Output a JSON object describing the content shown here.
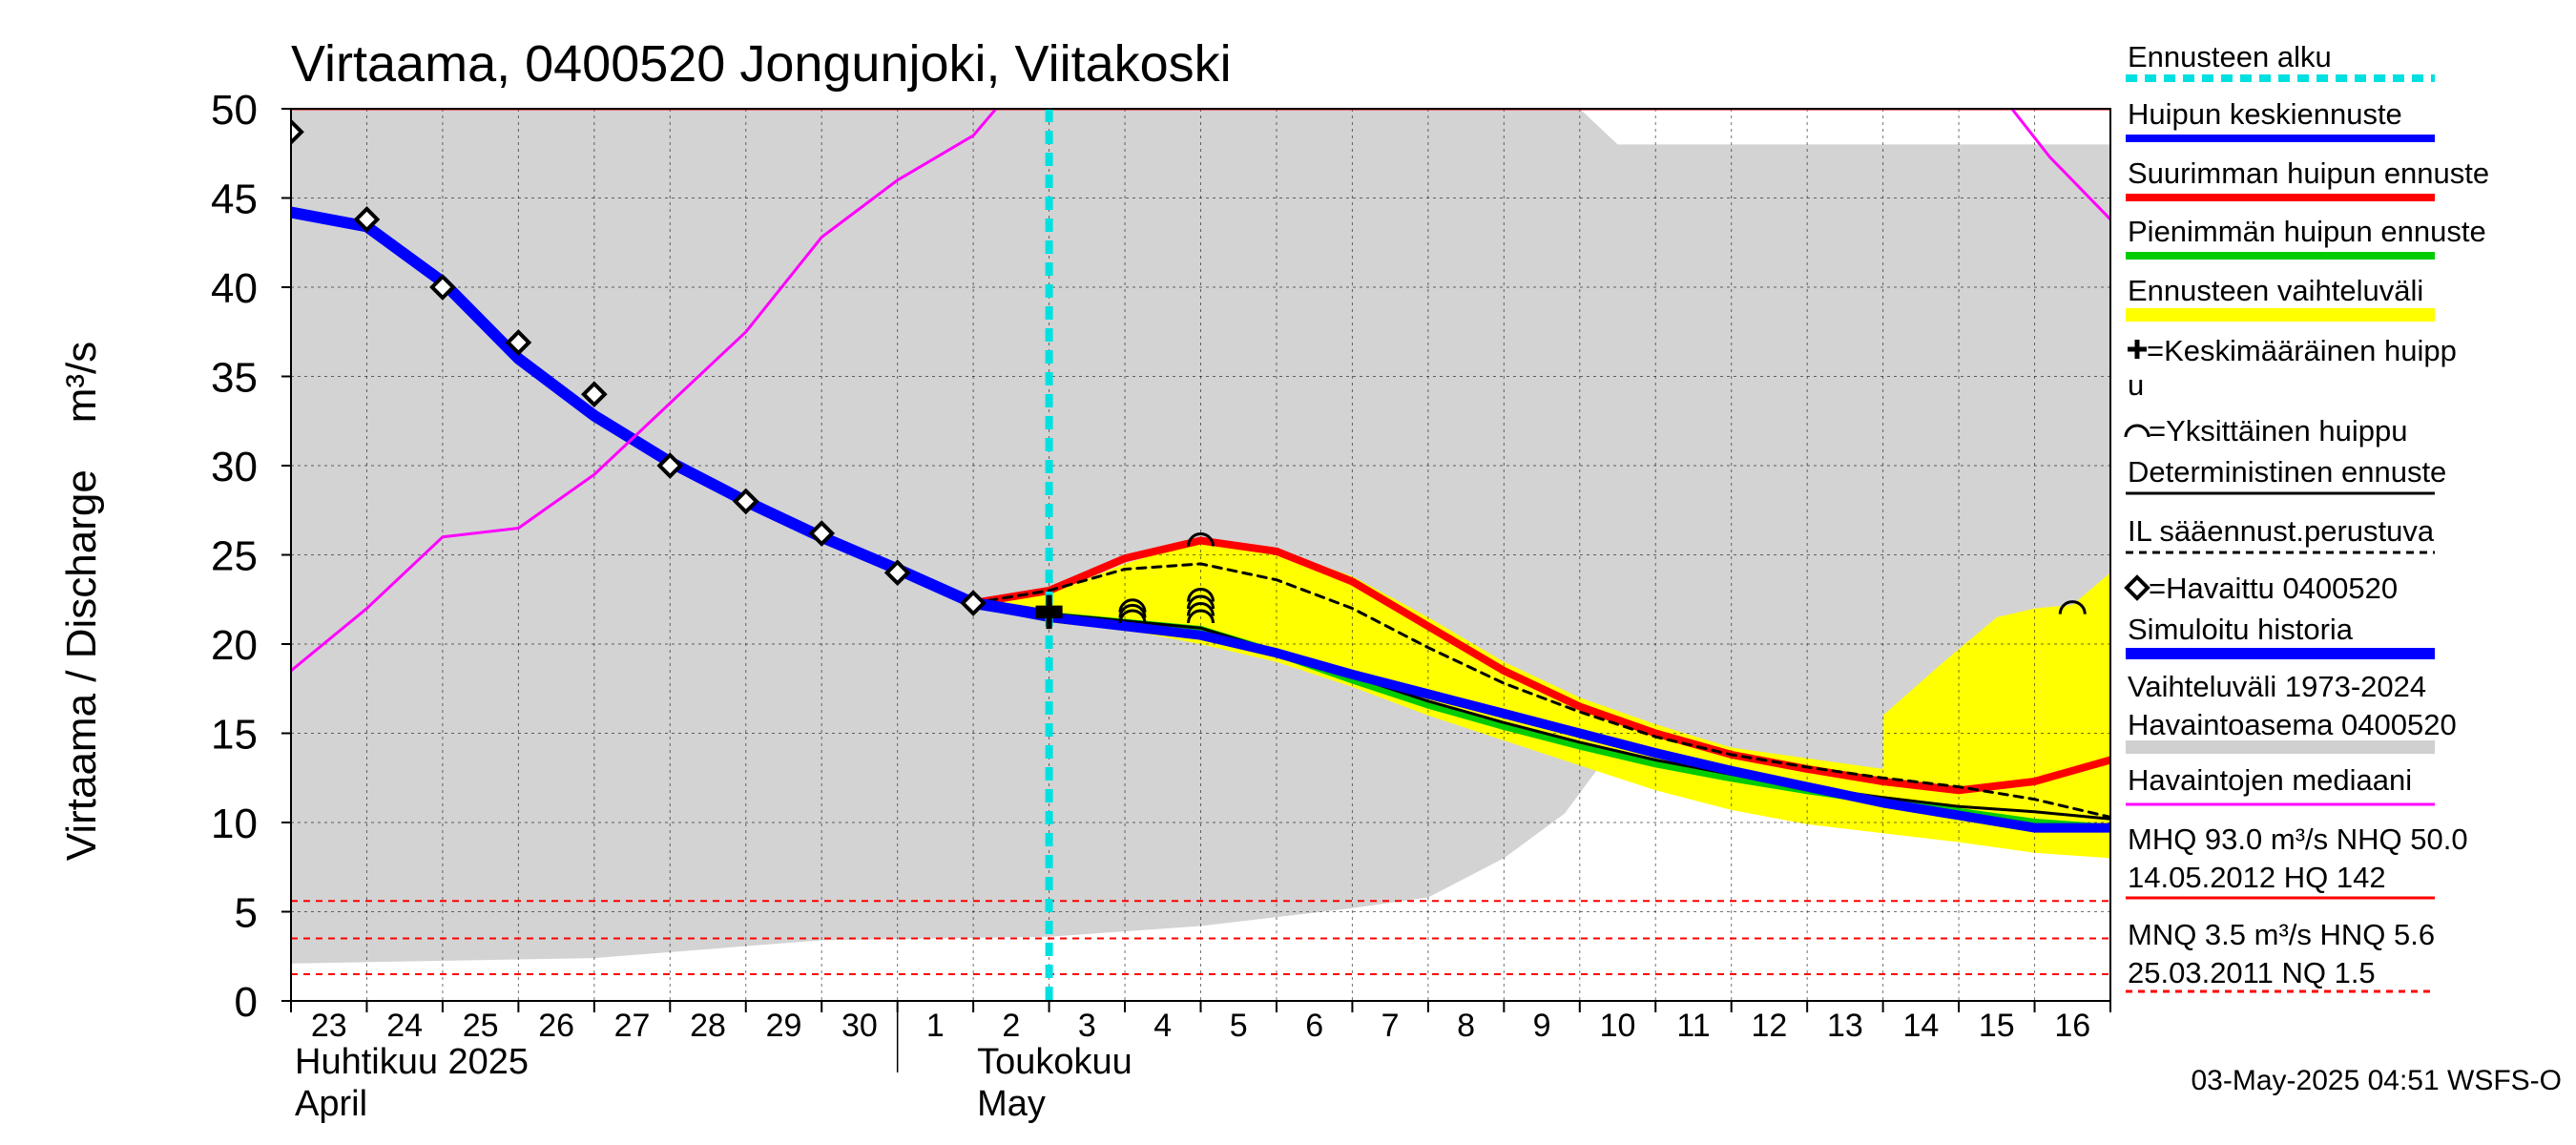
{
  "chart_data": {
    "type": "line",
    "title": "Virtaama, 0400520 Jongunjoki, Viitakoski",
    "ylabel": "Virtaama / Discharge    m³/s",
    "ylim": [
      0,
      50
    ],
    "yticks": [
      0,
      5,
      10,
      15,
      20,
      25,
      30,
      35,
      40,
      45,
      50
    ],
    "xlim": [
      0,
      24
    ],
    "x_ticks": [
      {
        "x": 0.5,
        "label": "23"
      },
      {
        "x": 1.5,
        "label": "24"
      },
      {
        "x": 2.5,
        "label": "25"
      },
      {
        "x": 3.5,
        "label": "26"
      },
      {
        "x": 4.5,
        "label": "27"
      },
      {
        "x": 5.5,
        "label": "28"
      },
      {
        "x": 6.5,
        "label": "29"
      },
      {
        "x": 7.5,
        "label": "30"
      },
      {
        "x": 8.5,
        "label": "1"
      },
      {
        "x": 9.5,
        "label": "2"
      },
      {
        "x": 10.5,
        "label": "3"
      },
      {
        "x": 11.5,
        "label": "4"
      },
      {
        "x": 12.5,
        "label": "5"
      },
      {
        "x": 13.5,
        "label": "6"
      },
      {
        "x": 14.5,
        "label": "7"
      },
      {
        "x": 15.5,
        "label": "8"
      },
      {
        "x": 16.5,
        "label": "9"
      },
      {
        "x": 17.5,
        "label": "10"
      },
      {
        "x": 18.5,
        "label": "11"
      },
      {
        "x": 19.5,
        "label": "12"
      },
      {
        "x": 20.5,
        "label": "13"
      },
      {
        "x": 21.5,
        "label": "14"
      },
      {
        "x": 22.5,
        "label": "15"
      },
      {
        "x": 23.5,
        "label": "16"
      }
    ],
    "months": [
      {
        "x": 0,
        "line1": "Huhtikuu  2025",
        "line2": "April"
      },
      {
        "x": 9,
        "line1": "Toukokuu",
        "line2": "May"
      }
    ],
    "forecast_start_x": 10,
    "hist_range_upper": [
      [
        0,
        50
      ],
      [
        17,
        50
      ],
      [
        17.5,
        48
      ],
      [
        24,
        48
      ]
    ],
    "hist_range_lower": [
      [
        0,
        2.1
      ],
      [
        4,
        2.4
      ],
      [
        7,
        3.4
      ],
      [
        10,
        3.6
      ],
      [
        12,
        4.2
      ],
      [
        14,
        5.2
      ],
      [
        15,
        5.8
      ],
      [
        16,
        8
      ],
      [
        16.8,
        10.5
      ],
      [
        17.5,
        14.5
      ],
      [
        17.6,
        16
      ],
      [
        18,
        14
      ],
      [
        24,
        11
      ]
    ],
    "ensemble_upper": [
      [
        9,
        22.2
      ],
      [
        10,
        22.8
      ],
      [
        11,
        24.5
      ],
      [
        12,
        25.8
      ],
      [
        13,
        25.3
      ],
      [
        14,
        23.8
      ],
      [
        15,
        21.5
      ],
      [
        16,
        19
      ],
      [
        17,
        17
      ],
      [
        18,
        15.5
      ],
      [
        19,
        14.2
      ],
      [
        20,
        13.6
      ],
      [
        21,
        13
      ],
      [
        22,
        12.3
      ],
      [
        23,
        11.8
      ],
      [
        23.5,
        12.5
      ],
      [
        24,
        13.2
      ]
    ],
    "ensemble_lower": [
      [
        24,
        8
      ],
      [
        23,
        8.3
      ],
      [
        22,
        8.9
      ],
      [
        21,
        9.4
      ],
      [
        20,
        9.9
      ],
      [
        19,
        10.7
      ],
      [
        18,
        11.8
      ],
      [
        17,
        13.2
      ],
      [
        16,
        14.6
      ],
      [
        15,
        16
      ],
      [
        14,
        17.6
      ],
      [
        13,
        19
      ],
      [
        12,
        20
      ],
      [
        11,
        20.8
      ],
      [
        10,
        21.2
      ],
      [
        9,
        22.2
      ]
    ],
    "ensemble_upper_tail": [
      [
        21,
        16
      ],
      [
        21.8,
        19
      ],
      [
        22.5,
        21.5
      ],
      [
        23,
        22
      ],
      [
        23.5,
        22.2
      ],
      [
        24,
        24
      ]
    ],
    "series": [
      {
        "name": "Suurimman huipun ennuste",
        "color": "#ff0000",
        "width": 8,
        "points": [
          [
            9,
            22.3
          ],
          [
            10,
            23
          ],
          [
            11,
            24.8
          ],
          [
            12,
            25.8
          ],
          [
            13,
            25.2
          ],
          [
            14,
            23.5
          ],
          [
            15,
            21
          ],
          [
            16,
            18.5
          ],
          [
            17,
            16.5
          ],
          [
            18,
            15
          ],
          [
            19,
            13.8
          ],
          [
            20,
            13
          ],
          [
            21,
            12.3
          ],
          [
            22,
            11.8
          ],
          [
            23,
            12.3
          ],
          [
            24,
            13.5
          ]
        ]
      },
      {
        "name": "Pienimmän huipun ennuste",
        "color": "#00cc00",
        "width": 8,
        "points": [
          [
            9,
            22.3
          ],
          [
            10,
            21.6
          ],
          [
            11,
            21.2
          ],
          [
            12,
            20.8
          ],
          [
            13,
            19.5
          ],
          [
            14,
            18
          ],
          [
            15,
            16.6
          ],
          [
            16,
            15.4
          ],
          [
            17,
            14.3
          ],
          [
            18,
            13.3
          ],
          [
            19,
            12.5
          ],
          [
            20,
            11.8
          ],
          [
            21,
            11.2
          ],
          [
            22,
            10.6
          ],
          [
            23,
            10
          ],
          [
            24,
            9.7
          ]
        ]
      },
      {
        "name": "Deterministinen ennuste",
        "color": "#000000",
        "width": 3,
        "points": [
          [
            9,
            22.3
          ],
          [
            10,
            21.7
          ],
          [
            11,
            21.3
          ],
          [
            12,
            20.9
          ],
          [
            13,
            19.6
          ],
          [
            14,
            18.2
          ],
          [
            15,
            16.8
          ],
          [
            16,
            15.6
          ],
          [
            17,
            14.5
          ],
          [
            18,
            13.5
          ],
          [
            19,
            12.7
          ],
          [
            20,
            12
          ],
          [
            21,
            11.4
          ],
          [
            22,
            10.9
          ],
          [
            23,
            10.6
          ],
          [
            24,
            10.2
          ]
        ]
      },
      {
        "name": "IL sääennust.perustuva",
        "color": "#000000",
        "width": 3,
        "dash": "9,7",
        "points": [
          [
            9,
            22.3
          ],
          [
            10,
            23
          ],
          [
            11,
            24.2
          ],
          [
            12,
            24.5
          ],
          [
            13,
            23.6
          ],
          [
            14,
            22
          ],
          [
            15,
            19.8
          ],
          [
            16,
            17.8
          ],
          [
            17,
            16.2
          ],
          [
            18,
            14.8
          ],
          [
            19,
            13.8
          ],
          [
            20,
            13.1
          ],
          [
            21,
            12.5
          ],
          [
            22,
            12
          ],
          [
            23,
            11.3
          ],
          [
            24,
            10.3
          ]
        ]
      },
      {
        "name": "Huipun keskiennuste",
        "color": "#0000ff",
        "width": 10,
        "points": [
          [
            9,
            22.3
          ],
          [
            10,
            21.5
          ],
          [
            11,
            21
          ],
          [
            12,
            20.5
          ],
          [
            13,
            19.5
          ],
          [
            14,
            18.3
          ],
          [
            15,
            17.2
          ],
          [
            16,
            16.1
          ],
          [
            17,
            15
          ],
          [
            18,
            13.9
          ],
          [
            19,
            12.9
          ],
          [
            20,
            12
          ],
          [
            21,
            11.1
          ],
          [
            22,
            10.4
          ],
          [
            23,
            9.7
          ],
          [
            24,
            9.7
          ]
        ]
      },
      {
        "name": "Simuloitu historia",
        "color": "#0000ff",
        "width": 12,
        "points": [
          [
            0,
            44.2
          ],
          [
            1,
            43.4
          ],
          [
            2,
            40.3
          ],
          [
            3,
            36
          ],
          [
            4,
            32.8
          ],
          [
            5,
            30.2
          ],
          [
            6,
            28
          ],
          [
            7,
            26
          ],
          [
            8,
            24.2
          ],
          [
            9,
            22.3
          ],
          [
            10,
            21.6
          ]
        ]
      },
      {
        "name": "Havaintojen mediaani",
        "color": "#ff00ff",
        "width": 3,
        "points": [
          [
            0,
            18.5
          ],
          [
            1,
            22
          ],
          [
            2,
            26
          ],
          [
            3,
            26.5
          ],
          [
            4,
            29.5
          ],
          [
            5,
            33.5
          ],
          [
            6,
            37.5
          ],
          [
            7,
            42.8
          ],
          [
            8,
            46
          ],
          [
            9,
            48.5
          ],
          [
            9.3,
            50
          ]
        ]
      },
      {
        "name": "Havaintojen mediaani (loppu)",
        "color": "#ff00ff",
        "width": 3,
        "points": [
          [
            22.7,
            50
          ],
          [
            23.2,
            47.3
          ],
          [
            24,
            43.8
          ]
        ]
      }
    ],
    "observed": [
      [
        0,
        48.7
      ],
      [
        1,
        43.8
      ],
      [
        2,
        40
      ],
      [
        3,
        36.9
      ],
      [
        4,
        34
      ],
      [
        5,
        30
      ],
      [
        6,
        28
      ],
      [
        7,
        26.2
      ],
      [
        8,
        24
      ],
      [
        9,
        22.3
      ]
    ],
    "mean_peak_marks": [
      [
        10,
        22
      ],
      [
        10,
        21.8
      ],
      [
        10,
        21.6
      ]
    ],
    "single_peak_marks": [
      [
        11.1,
        22.1
      ],
      [
        11.1,
        21.8
      ],
      [
        11.1,
        21.5
      ],
      [
        12,
        25.8
      ],
      [
        12,
        22.7
      ],
      [
        12,
        22.3
      ],
      [
        12,
        21.9
      ],
      [
        12,
        21.5
      ],
      [
        23.5,
        22
      ]
    ],
    "hlines": [
      {
        "y": 50,
        "color": "#ff0000",
        "dash": null,
        "width": 3
      },
      {
        "y": 5.6,
        "color": "#ff0000",
        "dash": "7,6",
        "width": 2
      },
      {
        "y": 3.5,
        "color": "#ff0000",
        "dash": "7,6",
        "width": 2
      },
      {
        "y": 1.5,
        "color": "#ff0000",
        "dash": "7,6",
        "width": 2
      }
    ]
  },
  "legend": [
    {
      "label": "Ennusteen alku",
      "symbol": "line",
      "color": "#00e0e0",
      "dash": "12,8",
      "width": 8
    },
    {
      "label": "Huipun keskiennuste",
      "symbol": "line",
      "color": "#0000ff",
      "width": 8
    },
    {
      "label": "Suurimman huipun ennuste",
      "symbol": "line",
      "color": "#ff0000",
      "width": 8
    },
    {
      "label": "Pienimmän huipun ennuste",
      "symbol": "line",
      "color": "#00cc00",
      "width": 8
    },
    {
      "label": "Ennusteen vaihteluväli",
      "symbol": "line",
      "color": "#ffff00",
      "width": 14
    },
    {
      "label": "=Keskimääräinen huipp",
      "label2": "u",
      "symbol": "plus"
    },
    {
      "label": "=Yksittäinen huippu",
      "symbol": "arc"
    },
    {
      "label": "Deterministinen ennuste",
      "symbol": "line",
      "color": "#000000",
      "width": 3
    },
    {
      "label": "IL sääennust.perustuva",
      "symbol": "line",
      "color": "#000000",
      "dash": "8,6",
      "width": 3
    },
    {
      "label": "=Havaittu 0400520",
      "symbol": "diamond"
    },
    {
      "label": "Simuloitu historia",
      "symbol": "line",
      "color": "#0000ff",
      "width": 12
    },
    {
      "label": "Vaihteluväli 1973-2024",
      "label2": " Havaintoasema 0400520",
      "symbol": "line",
      "color": "#d0d0d0",
      "width": 14
    },
    {
      "label": "Havaintojen mediaani",
      "symbol": "line",
      "color": "#ff00ff",
      "width": 3
    },
    {
      "label": "MHQ 93.0 m³/s NHQ 50.0",
      "label2": "14.05.2012 HQ  142",
      "symbol": "line",
      "color": "#ff0000",
      "width": 3
    },
    {
      "label": "MNQ  3.5 m³/s HNQ  5.6",
      "label2": "25.03.2011 NQ  1.5",
      "symbol": "line",
      "color": "#ff0000",
      "dash": "7,6",
      "width": 3
    }
  ],
  "footer": "03-May-2025 04:51 WSFS-O"
}
